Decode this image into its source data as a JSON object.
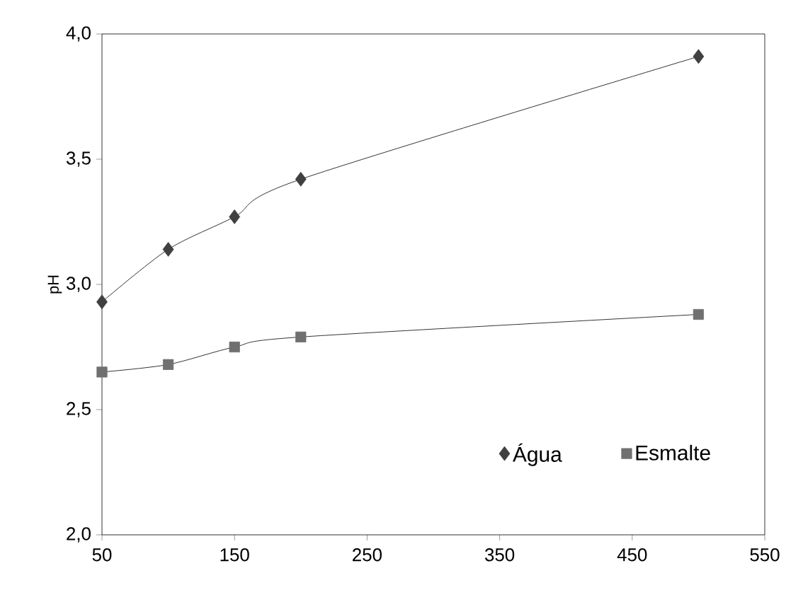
{
  "chart_data": {
    "type": "line",
    "ylabel": "pH",
    "x": [
      50,
      100,
      150,
      200,
      500
    ],
    "series": [
      {
        "name": "Água",
        "color": "#404040",
        "marker": "diamond",
        "values": [
          2.93,
          3.14,
          3.27,
          3.42,
          3.91
        ]
      },
      {
        "name": "Esmalte",
        "color": "#707070",
        "marker": "square",
        "values": [
          2.65,
          2.68,
          2.75,
          2.79,
          2.88
        ]
      }
    ],
    "xlim": [
      50,
      550
    ],
    "xticks": [
      50,
      150,
      250,
      350,
      450,
      550
    ],
    "ylim": [
      2.0,
      4.0
    ],
    "yticks": [
      {
        "value": 2.0,
        "label": "2,0"
      },
      {
        "value": 2.5,
        "label": "2,5"
      },
      {
        "value": 3.0,
        "label": "3,0"
      },
      {
        "value": 3.5,
        "label": "3,5"
      },
      {
        "value": 4.0,
        "label": "4,0"
      }
    ],
    "legend": "bottom right",
    "grid": false
  }
}
